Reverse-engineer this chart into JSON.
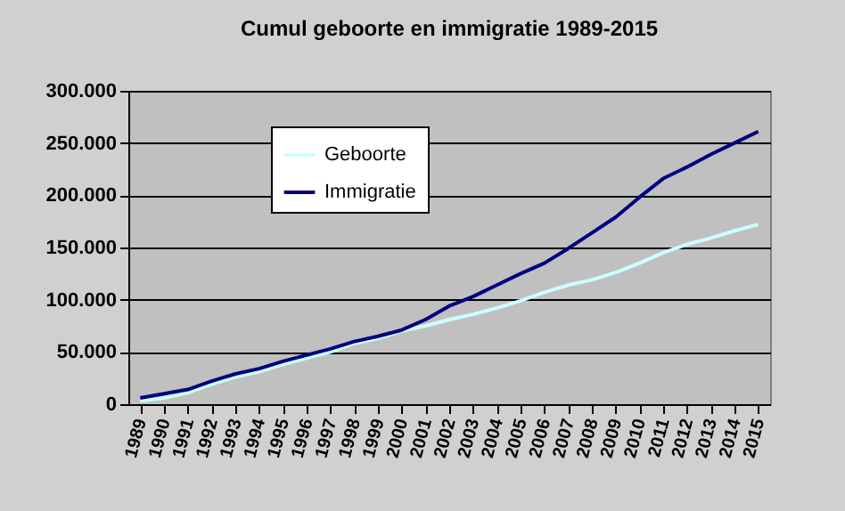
{
  "chart_data": {
    "type": "line",
    "title": "Cumul geboorte en immigratie 1989-2015",
    "categories": [
      "1989",
      "1990",
      "1991",
      "1992",
      "1993",
      "1994",
      "1995",
      "1996",
      "1997",
      "1998",
      "1999",
      "2000",
      "2001",
      "2002",
      "2003",
      "2004",
      "2005",
      "2006",
      "2007",
      "2008",
      "2009",
      "2010",
      "2011",
      "2012",
      "2013",
      "2014",
      "2015"
    ],
    "series": [
      {
        "name": "Geboorte",
        "color": "#ccffff",
        "values": [
          3000,
          6000,
          11000,
          19000,
          26000,
          31000,
          38000,
          44000,
          50000,
          58000,
          63000,
          70000,
          75000,
          81000,
          86000,
          92000,
          99000,
          107000,
          114000,
          119000,
          126000,
          135000,
          145000,
          153000,
          159000,
          166000,
          172000
        ]
      },
      {
        "name": "Immigratie",
        "color": "#000080",
        "values": [
          6000,
          10000,
          14000,
          22000,
          29000,
          34000,
          41000,
          47000,
          53000,
          60000,
          65000,
          71000,
          81000,
          94000,
          103000,
          114000,
          125000,
          135000,
          149000,
          164000,
          179000,
          198000,
          216000,
          227000,
          239000,
          250000,
          261000
        ]
      }
    ],
    "ylim": [
      0,
      300000
    ],
    "yticks": [
      {
        "value": 0,
        "label": "0"
      },
      {
        "value": 50000,
        "label": "50.000"
      },
      {
        "value": 100000,
        "label": "100.000"
      },
      {
        "value": 150000,
        "label": "150.000"
      },
      {
        "value": 200000,
        "label": "200.000"
      },
      {
        "value": 250000,
        "label": "250.000"
      },
      {
        "value": 300000,
        "label": "300.000"
      }
    ],
    "grid": "y",
    "legend": "top left",
    "marker": "none",
    "line_style": "solid"
  }
}
